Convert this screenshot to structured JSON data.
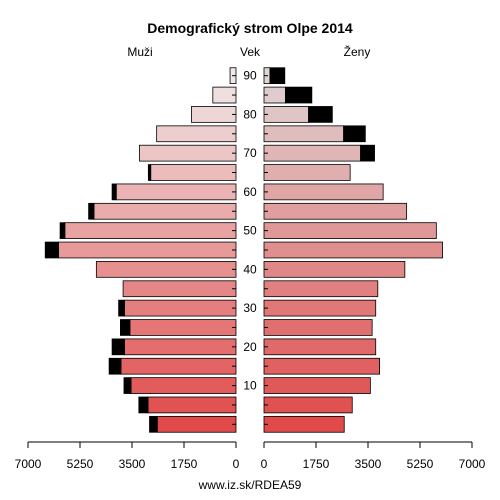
{
  "chart_data": {
    "type": "bar",
    "orientation": "horizontal-pyramid",
    "title": "Demografický strom Olpe 2014",
    "left_label": "Muži",
    "center_label": "Vek",
    "right_label": "Ženy",
    "footer": "www.iz.sk/RDEA59",
    "xlim": [
      0,
      7000
    ],
    "x_ticks": [
      0,
      1750,
      3500,
      5250,
      7000
    ],
    "x_tick_labels": [
      "0",
      "1750",
      "3500",
      "5250",
      "7000"
    ],
    "age_tick_labels": [
      "10",
      "20",
      "30",
      "40",
      "50",
      "60",
      "70",
      "80",
      "90"
    ],
    "age_groups": [
      "0-4",
      "5-9",
      "10-14",
      "15-19",
      "20-24",
      "25-29",
      "30-34",
      "35-39",
      "40-44",
      "45-49",
      "50-54",
      "55-59",
      "60-64",
      "65-69",
      "70-74",
      "75-79",
      "80-84",
      "85-89",
      "90+"
    ],
    "series": [
      {
        "side": "male",
        "base": [
          2650,
          2960,
          3530,
          3870,
          3750,
          3570,
          3750,
          3800,
          4700,
          5970,
          5760,
          4780,
          4030,
          2870,
          3250,
          2670,
          1500,
          780,
          200
        ],
        "excess": [
          260,
          310,
          240,
          400,
          420,
          320,
          200,
          0,
          0,
          450,
          160,
          180,
          140,
          80,
          0,
          0,
          0,
          0,
          0
        ]
      },
      {
        "side": "female",
        "base": [
          2700,
          2970,
          3580,
          3890,
          3760,
          3640,
          3760,
          3830,
          4740,
          6010,
          5800,
          4800,
          4010,
          2900,
          3250,
          2680,
          1500,
          720,
          200
        ]
      }
    ],
    "female_excess": [
      0,
      0,
      0,
      0,
      0,
      0,
      0,
      0,
      0,
      0,
      0,
      0,
      0,
      0,
      470,
      730,
      800,
      890,
      500
    ],
    "colors": {
      "male_young": "#e04a4a",
      "male_old": "#f0e8e8",
      "female_young": "#e04a4a",
      "female_old": "#e0d4d4",
      "excess": "#000000"
    }
  }
}
